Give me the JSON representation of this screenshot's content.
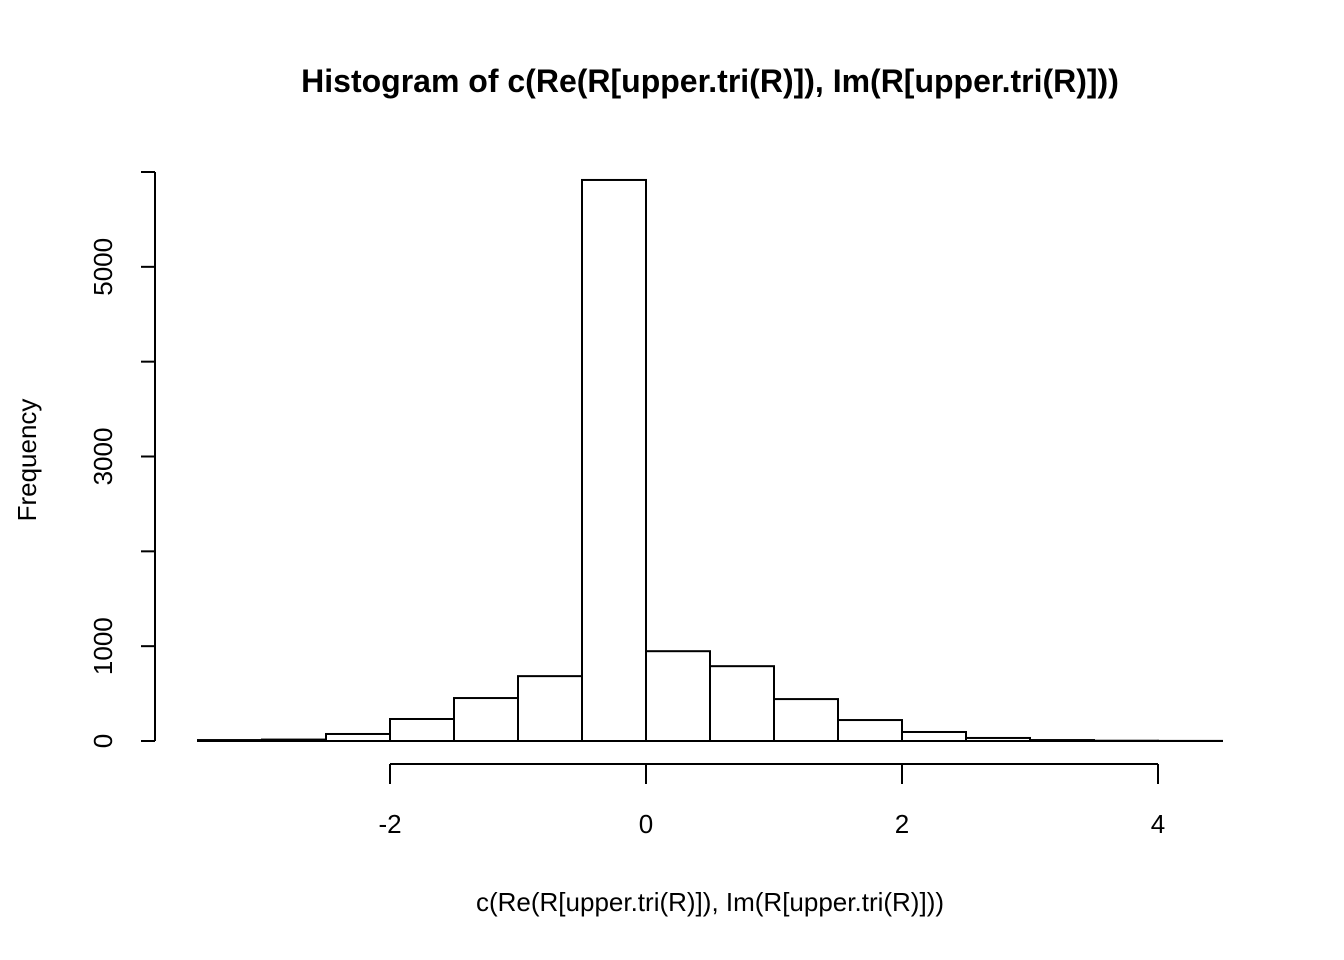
{
  "chart_data": {
    "type": "histogram",
    "title": "Histogram of c(Re(R[upper.tri(R)]), Im(R[upper.tri(R)]))",
    "x_label": "c(Re(R[upper.tri(R)]), Im(R[upper.tri(R)]))",
    "y_label": "Frequency",
    "bins": [
      -3.5,
      -3,
      -2.5,
      -2,
      -1.5,
      -1,
      -0.5,
      0,
      0.5,
      1,
      1.5,
      2,
      2.5,
      3,
      3.5,
      4,
      4.5
    ],
    "values": [
      10,
      15,
      74,
      232,
      453,
      684,
      5916,
      947,
      789,
      442,
      221,
      95,
      32,
      10,
      3,
      1
    ],
    "color": "#ffffff",
    "xlim": [
      -3.5,
      4.5
    ],
    "xticks": [
      -2,
      0,
      2,
      4
    ],
    "ylim": [
      0,
      6000
    ],
    "yticks": [
      0,
      1000,
      {
        "value": 2000,
        "label": null
      },
      3000,
      {
        "value": 4000,
        "label": null
      },
      5000,
      {
        "value": 6000,
        "label": null
      }
    ]
  }
}
